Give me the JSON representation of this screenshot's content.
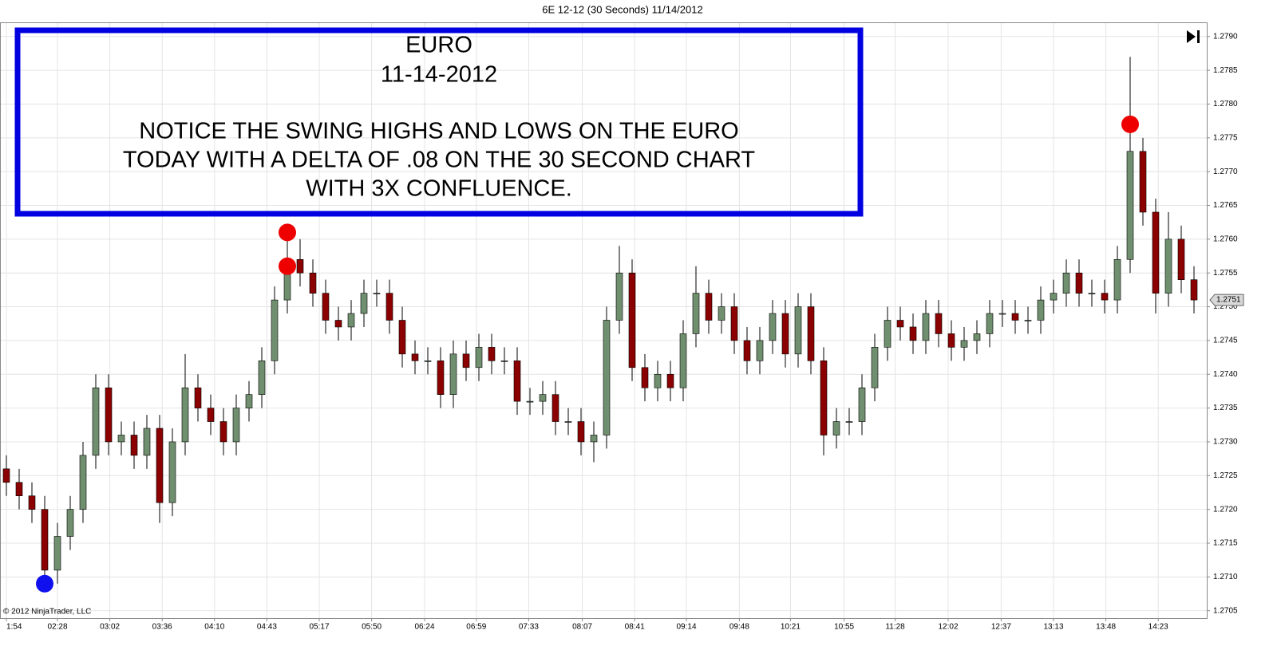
{
  "chart_data": {
    "type": "candlestick",
    "title": "6E 12-12 (30 Seconds)  11/14/2012",
    "copyright": "© 2012 NinjaTrader, LLC",
    "annotation": {
      "lines": [
        "EURO",
        "11-14-2012",
        "NOTICE THE SWING HIGHS AND LOWS ON THE EURO",
        "TODAY WITH A DELTA  OF .08 ON THE 30 SECOND CHART",
        "WITH 3X CONFLUENCE."
      ]
    },
    "open": [
      1.2726,
      1.2724,
      1.2722,
      1.272,
      1.2711,
      1.2716,
      1.272,
      1.2728,
      1.2738,
      1.273,
      1.2731,
      1.2728,
      1.2732,
      1.2721,
      1.273,
      1.2738,
      1.2735,
      1.2733,
      1.273,
      1.2735,
      1.2737,
      1.2742,
      1.2751,
      1.2757,
      1.2755,
      1.2752,
      1.2748,
      1.2747,
      1.2749,
      1.2752,
      1.2752,
      1.2748,
      1.2743,
      1.2742,
      1.2742,
      1.2737,
      1.2743,
      1.2741,
      1.2744,
      1.2742,
      1.2742,
      1.2736,
      1.2736,
      1.2737,
      1.2733,
      1.2733,
      1.273,
      1.2731,
      1.2748,
      1.2755,
      1.2741,
      1.2738,
      1.274,
      1.2738,
      1.2746,
      1.2752,
      1.2748,
      1.275,
      1.2745,
      1.2742,
      1.2745,
      1.2749,
      1.2743,
      1.275,
      1.2742,
      1.2731,
      1.2733,
      1.2733,
      1.2738,
      1.2744,
      1.2748,
      1.2747,
      1.2745,
      1.2749,
      1.2746,
      1.2744,
      1.2745,
      1.2746,
      1.2749,
      1.2749,
      1.2748,
      1.2748,
      1.2751,
      1.2752,
      1.2755,
      1.2752,
      1.2752,
      1.2751,
      1.2757,
      1.2773,
      1.2764,
      1.2752,
      1.276,
      1.2754
    ],
    "high": [
      1.2728,
      1.2726,
      1.2724,
      1.2722,
      1.2718,
      1.2722,
      1.273,
      1.274,
      1.274,
      1.2733,
      1.2733,
      1.2734,
      1.2734,
      1.2732,
      1.2743,
      1.274,
      1.2737,
      1.2735,
      1.2737,
      1.2739,
      1.2744,
      1.2753,
      1.2761,
      1.276,
      1.2757,
      1.2754,
      1.275,
      1.2751,
      1.2754,
      1.2754,
      1.2754,
      1.275,
      1.2745,
      1.2744,
      1.2744,
      1.2745,
      1.2745,
      1.2746,
      1.2746,
      1.2744,
      1.2744,
      1.2738,
      1.2739,
      1.2739,
      1.2735,
      1.2735,
      1.2733,
      1.275,
      1.2759,
      1.2757,
      1.2743,
      1.2742,
      1.2742,
      1.2748,
      1.2756,
      1.2754,
      1.2752,
      1.2752,
      1.2747,
      1.2747,
      1.2751,
      1.2751,
      1.2752,
      1.2752,
      1.2744,
      1.2735,
      1.2735,
      1.274,
      1.2746,
      1.275,
      1.275,
      1.2749,
      1.2751,
      1.2751,
      1.2748,
      1.2747,
      1.2748,
      1.2751,
      1.2751,
      1.2751,
      1.275,
      1.2753,
      1.2754,
      1.2757,
      1.2757,
      1.2754,
      1.2754,
      1.2759,
      1.2787,
      1.2775,
      1.2766,
      1.2764,
      1.2762,
      1.2756
    ],
    "low": [
      1.2722,
      1.272,
      1.2718,
      1.2709,
      1.2709,
      1.2714,
      1.2718,
      1.2726,
      1.2728,
      1.2728,
      1.2726,
      1.2726,
      1.2718,
      1.2719,
      1.2728,
      1.2733,
      1.2731,
      1.2728,
      1.2728,
      1.2733,
      1.2735,
      1.274,
      1.2749,
      1.2753,
      1.275,
      1.2746,
      1.2745,
      1.2745,
      1.2747,
      1.275,
      1.2746,
      1.2741,
      1.274,
      1.274,
      1.2735,
      1.2735,
      1.2739,
      1.2739,
      1.274,
      1.274,
      1.2734,
      1.2734,
      1.2734,
      1.2731,
      1.2731,
      1.2728,
      1.2727,
      1.2729,
      1.2746,
      1.2739,
      1.2736,
      1.2736,
      1.2736,
      1.2736,
      1.2744,
      1.2746,
      1.2746,
      1.2743,
      1.274,
      1.274,
      1.2743,
      1.2741,
      1.2741,
      1.274,
      1.2728,
      1.2729,
      1.2731,
      1.2731,
      1.2736,
      1.2742,
      1.2745,
      1.2743,
      1.2743,
      1.2744,
      1.2742,
      1.2742,
      1.2743,
      1.2744,
      1.2747,
      1.2746,
      1.2746,
      1.2746,
      1.2749,
      1.275,
      1.275,
      1.275,
      1.2749,
      1.2749,
      1.2755,
      1.2762,
      1.2749,
      1.275,
      1.2752,
      1.2749
    ],
    "close": [
      1.2724,
      1.2722,
      1.272,
      1.2711,
      1.2716,
      1.272,
      1.2728,
      1.2738,
      1.273,
      1.2731,
      1.2728,
      1.2732,
      1.2721,
      1.273,
      1.2738,
      1.2735,
      1.2733,
      1.273,
      1.2735,
      1.2737,
      1.2742,
      1.2751,
      1.2757,
      1.2755,
      1.2752,
      1.2748,
      1.2747,
      1.2749,
      1.2752,
      1.2752,
      1.2748,
      1.2743,
      1.2742,
      1.2742,
      1.2737,
      1.2743,
      1.2741,
      1.2744,
      1.2742,
      1.2742,
      1.2736,
      1.2736,
      1.2737,
      1.2733,
      1.2733,
      1.273,
      1.2731,
      1.2748,
      1.2755,
      1.2741,
      1.2738,
      1.274,
      1.2738,
      1.2746,
      1.2752,
      1.2748,
      1.275,
      1.2745,
      1.2742,
      1.2745,
      1.2749,
      1.2743,
      1.275,
      1.2742,
      1.2731,
      1.2733,
      1.2733,
      1.2738,
      1.2744,
      1.2748,
      1.2747,
      1.2745,
      1.2749,
      1.2746,
      1.2744,
      1.2745,
      1.2746,
      1.2749,
      1.2749,
      1.2748,
      1.2748,
      1.2751,
      1.2752,
      1.2755,
      1.2752,
      1.2752,
      1.2751,
      1.2757,
      1.2773,
      1.2764,
      1.2752,
      1.276,
      1.2754,
      1.2751
    ],
    "up_color": "#6f8f6f",
    "down_color": "#8b0000",
    "wick_color": "#000000",
    "ylim": [
      1.27039,
      1.27921
    ],
    "yticks": [
      1.2705,
      {
        "value": 1.271,
        "label": "1.2710"
      },
      1.2715,
      {
        "value": 1.272,
        "label": "1.2720"
      },
      1.2725,
      {
        "value": 1.273,
        "label": "1.2730"
      },
      1.2735,
      {
        "value": 1.274,
        "label": "1.2740"
      },
      1.2745,
      {
        "value": 1.275,
        "label": "1.2750"
      },
      1.2755,
      {
        "value": 1.276,
        "label": "1.2760"
      },
      1.2765,
      {
        "value": 1.277,
        "label": "1.2770"
      },
      1.2775,
      {
        "value": 1.278,
        "label": "1.2780"
      },
      1.2785,
      {
        "value": 1.279,
        "label": "1.2790"
      }
    ],
    "xlim": [
      0,
      94.5
    ],
    "xticks": [
      {
        "value": 0.5,
        "label": "1:54"
      },
      {
        "value": 4.5,
        "label": "02:28"
      },
      {
        "value": 8.6,
        "label": "03:02"
      },
      {
        "value": 12.7,
        "label": "03:36"
      },
      {
        "value": 16.8,
        "label": "04:10"
      },
      {
        "value": 20.9,
        "label": "04:43"
      },
      {
        "value": 25,
        "label": "05:17"
      },
      {
        "value": 29.1,
        "label": "05:50"
      },
      {
        "value": 33.25,
        "label": "06:24"
      },
      {
        "value": 37.3,
        "label": "06:59"
      },
      {
        "value": 41.4,
        "label": "07:33"
      },
      {
        "value": 45.6,
        "label": "08:07"
      },
      {
        "value": 49.7,
        "label": "08:41"
      },
      {
        "value": 53.75,
        "label": "09:14"
      },
      {
        "value": 57.9,
        "label": "09:48"
      },
      {
        "value": 61.9,
        "label": "10:21"
      },
      {
        "value": 66.1,
        "label": "10:55"
      },
      {
        "value": 70.1,
        "label": "11:28"
      },
      {
        "value": 74.25,
        "label": "12:02"
      },
      {
        "value": 78.4,
        "label": "12:37"
      },
      {
        "value": 82.5,
        "label": "13:13"
      },
      {
        "value": 86.6,
        "label": "13:48"
      },
      {
        "value": 90.7,
        "label": "14:23"
      }
    ],
    "grid": true,
    "markers": [
      {
        "index": 3,
        "value": 1.2709,
        "color": "#1010ee"
      },
      {
        "index": 22,
        "value": 1.2761,
        "color": "#ee0000"
      },
      {
        "index": 22,
        "value": 1.2756,
        "color": "#ee0000"
      },
      {
        "index": 88,
        "value": 1.2777,
        "color": "#ee0000"
      }
    ],
    "last_price": 1.2751
  }
}
